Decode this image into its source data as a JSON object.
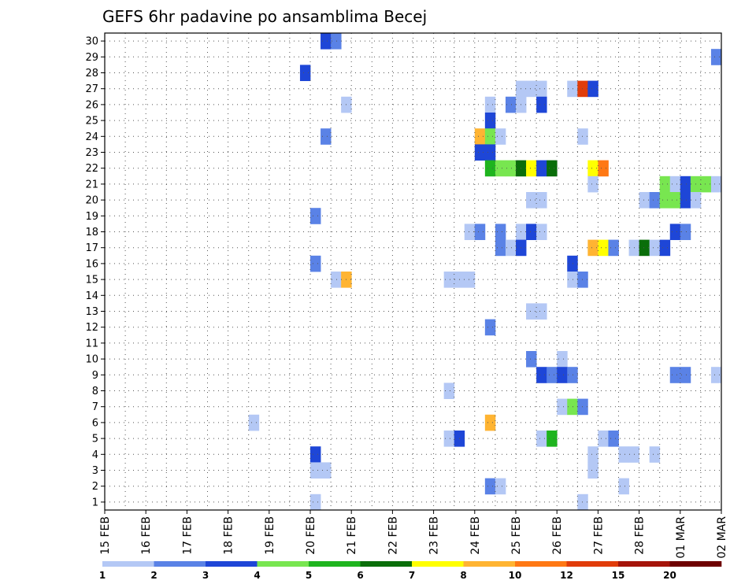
{
  "chart_data": {
    "type": "heatmap",
    "title": "GEFS 6hr padavine po ansamblima Becej",
    "y_categories": [
      "1",
      "2",
      "3",
      "4",
      "5",
      "6",
      "7",
      "8",
      "9",
      "10",
      "11",
      "12",
      "13",
      "14",
      "15",
      "16",
      "17",
      "18",
      "19",
      "20",
      "21",
      "22",
      "23",
      "24",
      "25",
      "26",
      "27",
      "28",
      "29",
      "30"
    ],
    "x_tick_labels": [
      "15 FEB",
      "16 FEB",
      "17 FEB",
      "18 FEB",
      "19 FEB",
      "20 FEB",
      "21 FEB",
      "22 FEB",
      "23 FEB",
      "24 FEB",
      "25 FEB",
      "26 FEB",
      "27 FEB",
      "28 FEB",
      "01 MAR",
      "02 MAR"
    ],
    "x_unit": "6-hour step from 15 FEB 00Z",
    "x_range": [
      0,
      60
    ],
    "grid": true,
    "legend": {
      "placement": "bottom",
      "labels": [
        "1",
        "2",
        "3",
        "4",
        "5",
        "6",
        "7",
        "8",
        "10",
        "12",
        "15",
        "20"
      ],
      "colors": [
        "#b4c8f5",
        "#5a82e6",
        "#1e46d7",
        "#78e650",
        "#1eb41e",
        "#0a6e0a",
        "#ffff00",
        "#ffb432",
        "#ff7814",
        "#e13c0a",
        "#a5140a",
        "#6e0000"
      ]
    },
    "cells": [
      {
        "m": 30,
        "t": 21,
        "c": 2
      },
      {
        "m": 30,
        "t": 22,
        "c": 1
      },
      {
        "m": 29,
        "t": 59,
        "c": 1
      },
      {
        "m": 28,
        "t": 19,
        "c": 2
      },
      {
        "m": 27,
        "t": 40,
        "c": 0
      },
      {
        "m": 27,
        "t": 41,
        "c": 0
      },
      {
        "m": 27,
        "t": 42,
        "c": 0
      },
      {
        "m": 27,
        "t": 45,
        "c": 0
      },
      {
        "m": 27,
        "t": 46,
        "c": 9
      },
      {
        "m": 27,
        "t": 47,
        "c": 2
      },
      {
        "m": 26,
        "t": 23,
        "c": 0
      },
      {
        "m": 26,
        "t": 37,
        "c": 0
      },
      {
        "m": 26,
        "t": 39,
        "c": 1
      },
      {
        "m": 26,
        "t": 40,
        "c": 0
      },
      {
        "m": 26,
        "t": 42,
        "c": 2
      },
      {
        "m": 25,
        "t": 37,
        "c": 2
      },
      {
        "m": 24,
        "t": 21,
        "c": 1
      },
      {
        "m": 24,
        "t": 36,
        "c": 7
      },
      {
        "m": 24,
        "t": 37,
        "c": 3
      },
      {
        "m": 24,
        "t": 38,
        "c": 0
      },
      {
        "m": 24,
        "t": 46,
        "c": 0
      },
      {
        "m": 23,
        "t": 36,
        "c": 2
      },
      {
        "m": 23,
        "t": 37,
        "c": 2
      },
      {
        "m": 22,
        "t": 37,
        "c": 4
      },
      {
        "m": 22,
        "t": 38,
        "c": 3
      },
      {
        "m": 22,
        "t": 39,
        "c": 3
      },
      {
        "m": 22,
        "t": 40,
        "c": 5
      },
      {
        "m": 22,
        "t": 41,
        "c": 6
      },
      {
        "m": 22,
        "t": 42,
        "c": 2
      },
      {
        "m": 22,
        "t": 43,
        "c": 5
      },
      {
        "m": 22,
        "t": 47,
        "c": 6
      },
      {
        "m": 22,
        "t": 48,
        "c": 8
      },
      {
        "m": 21,
        "t": 47,
        "c": 0
      },
      {
        "m": 21,
        "t": 54,
        "c": 3
      },
      {
        "m": 21,
        "t": 55,
        "c": 0
      },
      {
        "m": 21,
        "t": 56,
        "c": 2
      },
      {
        "m": 21,
        "t": 57,
        "c": 3
      },
      {
        "m": 21,
        "t": 58,
        "c": 3
      },
      {
        "m": 21,
        "t": 59,
        "c": 0
      },
      {
        "m": 20,
        "t": 41,
        "c": 0
      },
      {
        "m": 20,
        "t": 42,
        "c": 0
      },
      {
        "m": 20,
        "t": 52,
        "c": 0
      },
      {
        "m": 20,
        "t": 53,
        "c": 1
      },
      {
        "m": 20,
        "t": 54,
        "c": 3
      },
      {
        "m": 20,
        "t": 55,
        "c": 3
      },
      {
        "m": 20,
        "t": 56,
        "c": 2
      },
      {
        "m": 20,
        "t": 57,
        "c": 0
      },
      {
        "m": 19,
        "t": 20,
        "c": 1
      },
      {
        "m": 18,
        "t": 35,
        "c": 0
      },
      {
        "m": 18,
        "t": 36,
        "c": 1
      },
      {
        "m": 18,
        "t": 38,
        "c": 1
      },
      {
        "m": 18,
        "t": 40,
        "c": 0
      },
      {
        "m": 18,
        "t": 41,
        "c": 2
      },
      {
        "m": 18,
        "t": 42,
        "c": 0
      },
      {
        "m": 18,
        "t": 55,
        "c": 2
      },
      {
        "m": 18,
        "t": 56,
        "c": 1
      },
      {
        "m": 17,
        "t": 38,
        "c": 1
      },
      {
        "m": 17,
        "t": 39,
        "c": 0
      },
      {
        "m": 17,
        "t": 40,
        "c": 2
      },
      {
        "m": 17,
        "t": 47,
        "c": 7
      },
      {
        "m": 17,
        "t": 48,
        "c": 6
      },
      {
        "m": 17,
        "t": 49,
        "c": 1
      },
      {
        "m": 17,
        "t": 51,
        "c": 0
      },
      {
        "m": 17,
        "t": 52,
        "c": 5
      },
      {
        "m": 17,
        "t": 53,
        "c": 0
      },
      {
        "m": 17,
        "t": 54,
        "c": 2
      },
      {
        "m": 16,
        "t": 20,
        "c": 1
      },
      {
        "m": 16,
        "t": 45,
        "c": 2
      },
      {
        "m": 15,
        "t": 22,
        "c": 0
      },
      {
        "m": 15,
        "t": 23,
        "c": 7
      },
      {
        "m": 15,
        "t": 33,
        "c": 0
      },
      {
        "m": 15,
        "t": 34,
        "c": 0
      },
      {
        "m": 15,
        "t": 35,
        "c": 0
      },
      {
        "m": 15,
        "t": 45,
        "c": 0
      },
      {
        "m": 15,
        "t": 46,
        "c": 1
      },
      {
        "m": 13,
        "t": 41,
        "c": 0
      },
      {
        "m": 13,
        "t": 42,
        "c": 0
      },
      {
        "m": 12,
        "t": 37,
        "c": 1
      },
      {
        "m": 10,
        "t": 41,
        "c": 1
      },
      {
        "m": 10,
        "t": 44,
        "c": 0
      },
      {
        "m": 9,
        "t": 42,
        "c": 2
      },
      {
        "m": 9,
        "t": 43,
        "c": 1
      },
      {
        "m": 9,
        "t": 44,
        "c": 2
      },
      {
        "m": 9,
        "t": 45,
        "c": 1
      },
      {
        "m": 9,
        "t": 55,
        "c": 1
      },
      {
        "m": 9,
        "t": 56,
        "c": 1
      },
      {
        "m": 9,
        "t": 59,
        "c": 0
      },
      {
        "m": 8,
        "t": 33,
        "c": 0
      },
      {
        "m": 7,
        "t": 44,
        "c": 0
      },
      {
        "m": 7,
        "t": 45,
        "c": 3
      },
      {
        "m": 7,
        "t": 46,
        "c": 1
      },
      {
        "m": 6,
        "t": 14,
        "c": 0
      },
      {
        "m": 6,
        "t": 37,
        "c": 7
      },
      {
        "m": 5,
        "t": 33,
        "c": 0
      },
      {
        "m": 5,
        "t": 34,
        "c": 2
      },
      {
        "m": 5,
        "t": 42,
        "c": 0
      },
      {
        "m": 5,
        "t": 43,
        "c": 4
      },
      {
        "m": 5,
        "t": 48,
        "c": 0
      },
      {
        "m": 5,
        "t": 49,
        "c": 1
      },
      {
        "m": 4,
        "t": 20,
        "c": 2
      },
      {
        "m": 4,
        "t": 47,
        "c": 0
      },
      {
        "m": 4,
        "t": 50,
        "c": 0
      },
      {
        "m": 4,
        "t": 51,
        "c": 0
      },
      {
        "m": 4,
        "t": 53,
        "c": 0
      },
      {
        "m": 3,
        "t": 20,
        "c": 0
      },
      {
        "m": 3,
        "t": 21,
        "c": 0
      },
      {
        "m": 3,
        "t": 47,
        "c": 0
      },
      {
        "m": 2,
        "t": 37,
        "c": 1
      },
      {
        "m": 2,
        "t": 38,
        "c": 0
      },
      {
        "m": 2,
        "t": 50,
        "c": 0
      },
      {
        "m": 1,
        "t": 20,
        "c": 0
      },
      {
        "m": 1,
        "t": 46,
        "c": 0
      }
    ]
  }
}
